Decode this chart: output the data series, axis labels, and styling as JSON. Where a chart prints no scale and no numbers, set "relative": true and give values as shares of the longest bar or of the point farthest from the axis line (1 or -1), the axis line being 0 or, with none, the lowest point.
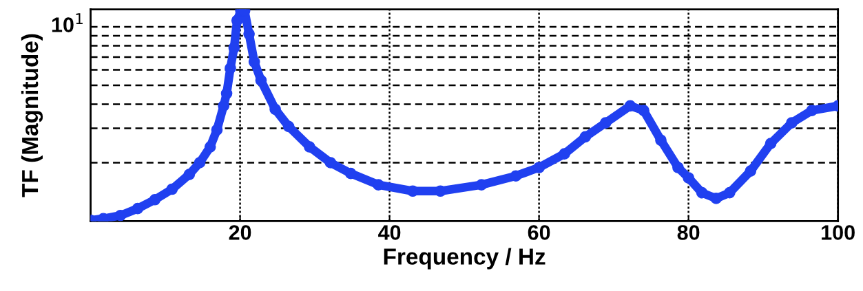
{
  "chart_data": {
    "type": "line",
    "xlabel": "Frequency / Hz",
    "ylabel": "TF (Magnitude)",
    "relative": true,
    "xlim": [
      0,
      100
    ],
    "xticks": [
      20,
      40,
      60,
      80,
      100
    ],
    "grid": "x",
    "marker": "circle",
    "ref_lines": [
      {
        "axis": "y",
        "value": 0.278,
        "color": "#000000",
        "line_style": "dashed"
      },
      {
        "axis": "y",
        "value": 0.441,
        "color": "#000000",
        "line_style": "dashed"
      },
      {
        "axis": "y",
        "value": 0.556,
        "color": "#000000",
        "line_style": "dashed"
      },
      {
        "axis": "y",
        "value": 0.646,
        "color": "#000000",
        "line_style": "dashed"
      },
      {
        "axis": "y",
        "value": 0.719,
        "color": "#000000",
        "line_style": "dashed"
      },
      {
        "axis": "y",
        "value": 0.78,
        "color": "#000000",
        "line_style": "dashed"
      },
      {
        "axis": "y",
        "value": 0.834,
        "color": "#000000",
        "line_style": "dashed"
      },
      {
        "axis": "y",
        "value": 0.881,
        "color": "#000000",
        "line_style": "dashed"
      },
      {
        "axis": "y",
        "value": 0.924,
        "color": "#000000",
        "line_style": "dashed",
        "label": "10$^{1}$"
      }
    ],
    "series": [
      {
        "color": "#2040f0",
        "x": [
          0,
          1.7,
          4,
          6.3,
          8.6,
          10.9,
          13.2,
          14.6,
          16,
          16.9,
          17.8,
          18.2,
          18.7,
          19.2,
          19.6,
          20.1,
          20.6,
          21.2,
          21.9,
          22.8,
          24.7,
          26.5,
          29.3,
          32.1,
          34.8,
          38.5,
          43.1,
          46.8,
          52.3,
          56.9,
          60,
          63.4,
          66.2,
          68.9,
          72.2,
          74,
          76.3,
          78.6,
          80,
          81.8,
          83.7,
          85.5,
          88.3,
          91,
          93.8,
          96.5,
          100
        ],
        "values": [
          0.004,
          0.012,
          0.027,
          0.06,
          0.102,
          0.152,
          0.222,
          0.278,
          0.353,
          0.434,
          0.548,
          0.607,
          0.727,
          0.824,
          0.954,
          1,
          1,
          0.89,
          0.757,
          0.669,
          0.532,
          0.45,
          0.353,
          0.278,
          0.227,
          0.173,
          0.143,
          0.143,
          0.173,
          0.215,
          0.255,
          0.32,
          0.401,
          0.467,
          0.548,
          0.526,
          0.385,
          0.255,
          0.206,
          0.135,
          0.108,
          0.135,
          0.238,
          0.369,
          0.467,
          0.526,
          0.548
        ]
      }
    ]
  }
}
